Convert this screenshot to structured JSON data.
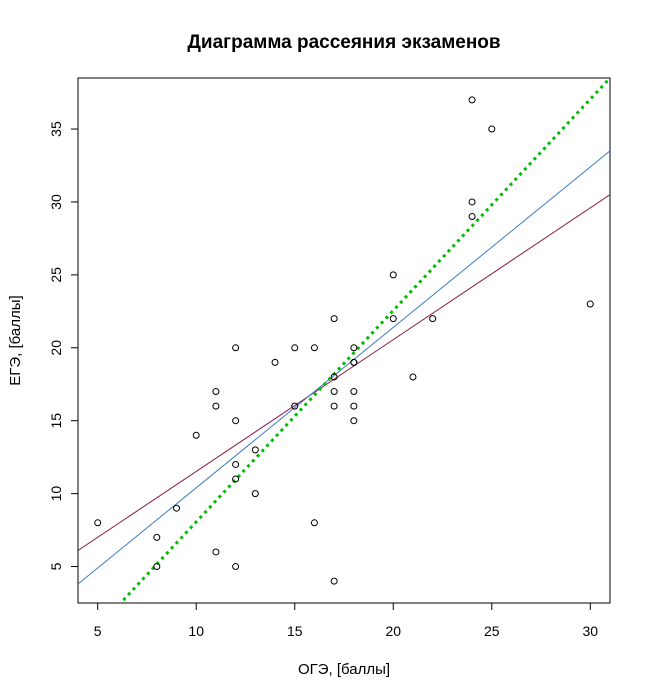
{
  "chart_data": {
    "type": "scatter",
    "title": "Диаграмма рассеяния экзаменов",
    "xlabel": "ОГЭ, [баллы]",
    "ylabel": "ЕГЭ, [баллы]",
    "xlim": [
      4,
      31
    ],
    "ylim": [
      2.5,
      38.5
    ],
    "xticks": [
      5,
      10,
      15,
      20,
      25,
      30
    ],
    "yticks": [
      5,
      10,
      15,
      20,
      25,
      30,
      35
    ],
    "grid": false,
    "legend": "none",
    "points": {
      "color": "#000000",
      "x": [
        5,
        8,
        8,
        9,
        10,
        11,
        11,
        11,
        12,
        12,
        12,
        12,
        12,
        13,
        13,
        14,
        15,
        15,
        16,
        16,
        17,
        17,
        17,
        17,
        17,
        18,
        18,
        18,
        18,
        18,
        18,
        20,
        20,
        21,
        22,
        24,
        24,
        24,
        25,
        30
      ],
      "y": [
        8,
        7,
        5,
        9,
        14,
        6,
        16,
        17,
        5,
        11,
        12,
        15,
        20,
        10,
        13,
        19,
        16,
        20,
        8,
        20,
        4,
        16,
        17,
        18,
        22,
        15,
        16,
        17,
        19,
        19,
        20,
        22,
        25,
        18,
        22,
        29,
        30,
        37,
        35,
        23
      ]
    },
    "lines": [
      {
        "color": "#8B1A4A",
        "style": "solid",
        "x": [
          4,
          31
        ],
        "y": [
          6.1,
          30.5
        ]
      },
      {
        "color": "#3B7BBF",
        "style": "solid",
        "x": [
          4,
          31
        ],
        "y": [
          3.8,
          33.5
        ]
      },
      {
        "color": "#00BB00",
        "style": "dotted",
        "x": [
          6.3,
          31
        ],
        "y": [
          2.7,
          38.5
        ]
      }
    ]
  }
}
